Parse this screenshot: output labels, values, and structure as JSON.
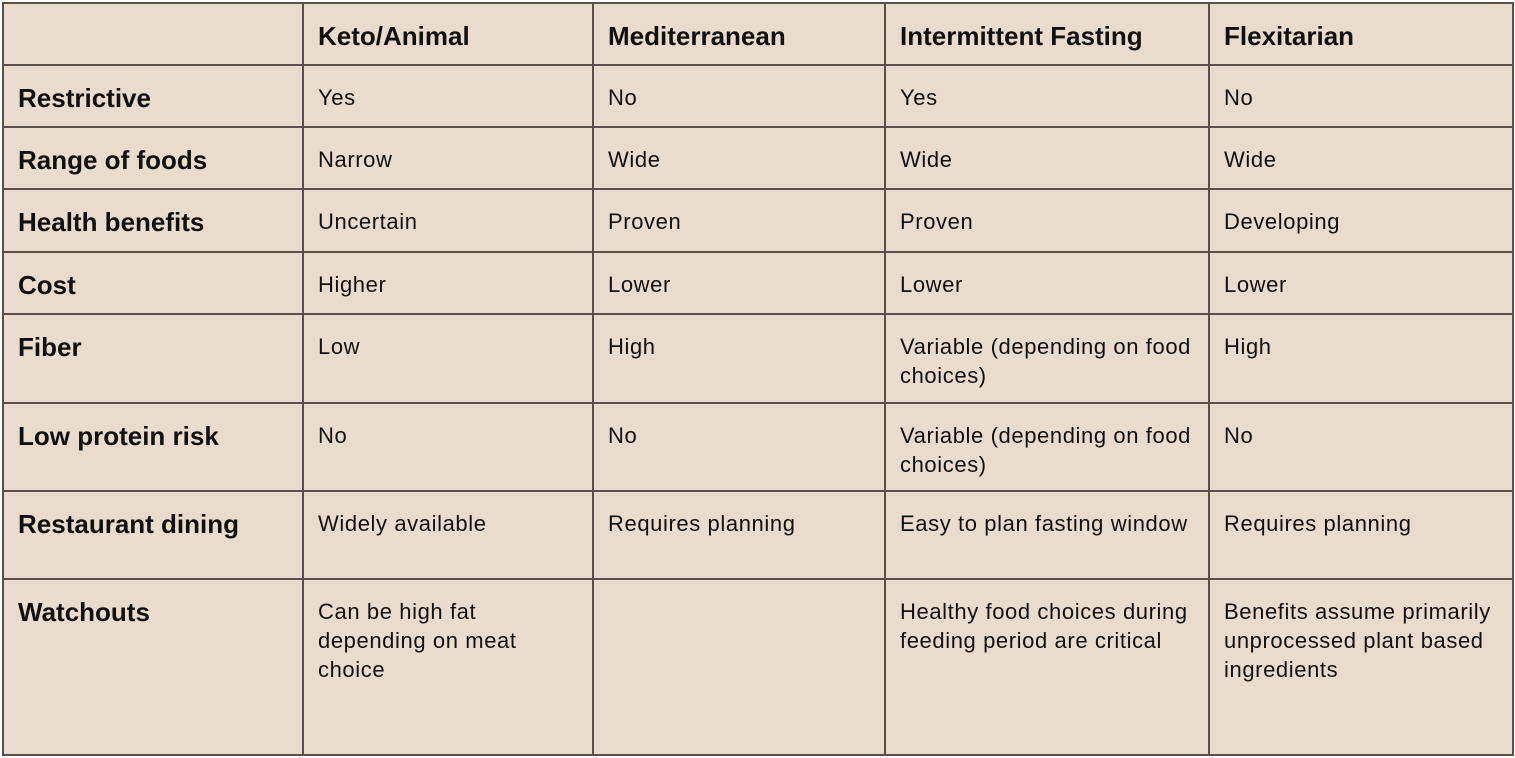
{
  "table": {
    "columns": [
      "",
      "Keto/Animal",
      "Mediterranean",
      "Intermittent Fasting",
      "Flexitarian"
    ],
    "rows": [
      {
        "label": "Restrictive",
        "cells": [
          " Yes",
          "No",
          "Yes",
          "No"
        ]
      },
      {
        "label": "Range of foods",
        "cells": [
          "Narrow",
          "Wide",
          "Wide",
          "Wide"
        ]
      },
      {
        "label": "Health benefits",
        "cells": [
          "Uncertain",
          "Proven",
          "Proven",
          "Developing"
        ]
      },
      {
        "label": "Cost",
        "cells": [
          "Higher",
          "Lower",
          "Lower",
          "Lower"
        ]
      },
      {
        "label": "Fiber",
        "cells": [
          "Low",
          "High",
          "Variable (depending on food choices)",
          "High"
        ]
      },
      {
        "label": "Low protein risk",
        "cells": [
          "No",
          "No",
          "Variable (depending on food choices)",
          "No"
        ]
      },
      {
        "label": "Restaurant dining",
        "cells": [
          "Widely available",
          "Requires planning",
          "Easy to plan fasting window",
          "Requires planning"
        ]
      },
      {
        "label": "Watchouts",
        "cells": [
          "Can be high fat depending on meat choice",
          "",
          "Healthy food choices during feeding period are critical",
          "Benefits assume primarily unprocessed plant based ingredients"
        ]
      }
    ]
  },
  "colors": {
    "cell_background": "#e9dccc",
    "border": "#5a4f4a",
    "text": "#111111"
  }
}
